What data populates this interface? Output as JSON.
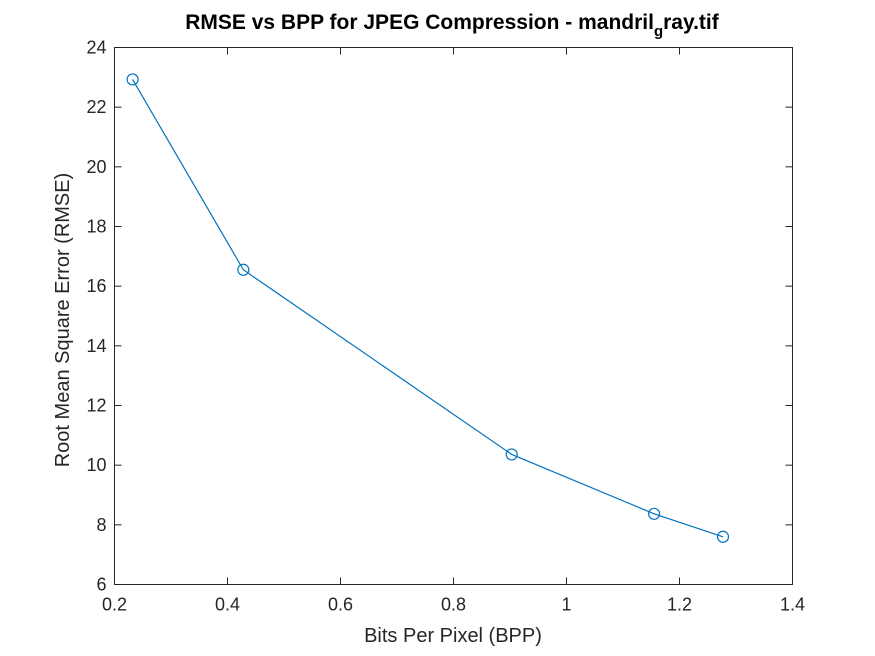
{
  "chart_data": {
    "type": "line",
    "title_main": "RMSE vs BPP for JPEG Compression - mandril",
    "title_sub": "g",
    "title_tail": "ray.tif",
    "xlabel": "Bits Per Pixel (BPP)",
    "ylabel": "Root Mean Square Error (RMSE)",
    "xlim": [
      0.2,
      1.4
    ],
    "ylim": [
      6,
      24
    ],
    "xticks": [
      0.2,
      0.4,
      0.6,
      0.8,
      1.0,
      1.2,
      1.4
    ],
    "xtick_labels": [
      "0.2",
      "0.4",
      "0.6",
      "0.8",
      "1",
      "1.2",
      "1.4"
    ],
    "yticks": [
      6,
      8,
      10,
      12,
      14,
      16,
      18,
      20,
      22,
      24
    ],
    "ytick_labels": [
      "6",
      "8",
      "10",
      "12",
      "14",
      "16",
      "18",
      "20",
      "22",
      "24"
    ],
    "grid": false,
    "marker": "circle",
    "series": [
      {
        "x": [
          0.232,
          0.428,
          0.903,
          1.155,
          1.277
        ],
        "y": [
          22.93,
          16.55,
          10.36,
          8.37,
          7.6
        ]
      }
    ]
  },
  "colors": {
    "series": "#0072BD",
    "axis": "#262626"
  }
}
